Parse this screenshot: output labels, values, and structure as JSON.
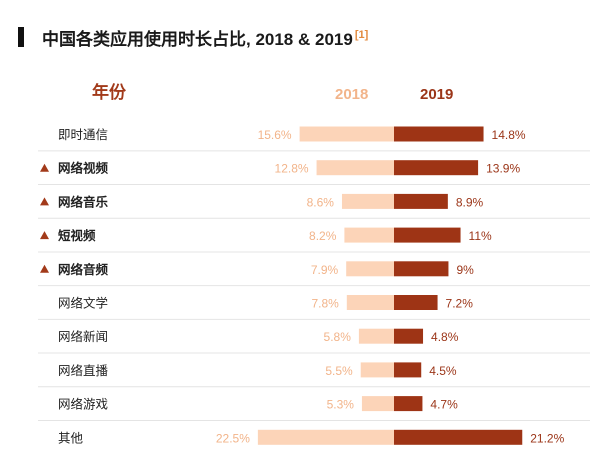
{
  "title": "中国各类应用使用时长占比, 2018 & 2019",
  "footnote": "[1]",
  "column_header": "年份",
  "colors": {
    "accent_2018": "#fcd4b8",
    "accent_2019": "#9e3415",
    "label_2018": "#f2b48a",
    "label_2019": "#9b3518",
    "triangle": "#a23a1a"
  },
  "chart_data": {
    "type": "bar",
    "orientation": "horizontal-diverging",
    "title": "中国各类应用使用时长占比, 2018 & 2019",
    "categories": [
      "即时通信",
      "网络视频",
      "网络音乐",
      "短视频",
      "网络音频",
      "网络文学",
      "网络新闻",
      "网络直播",
      "网络游戏",
      "其他"
    ],
    "highlighted": [
      false,
      true,
      true,
      true,
      true,
      false,
      false,
      false,
      false,
      false
    ],
    "series": [
      {
        "name": "2018",
        "values": [
          15.6,
          12.8,
          8.6,
          8.2,
          7.9,
          7.8,
          5.8,
          5.5,
          5.3,
          22.5
        ],
        "labels": [
          "15.6%",
          "12.8%",
          "8.6%",
          "8.2%",
          "7.9%",
          "7.8%",
          "5.8%",
          "5.5%",
          "5.3%",
          "22.5%"
        ]
      },
      {
        "name": "2019",
        "values": [
          14.8,
          13.9,
          8.9,
          11,
          9,
          7.2,
          4.8,
          4.5,
          4.7,
          21.2
        ],
        "labels": [
          "14.8%",
          "13.9%",
          "8.9%",
          "11%",
          "9%",
          "7.2%",
          "4.8%",
          "4.5%",
          "4.7%",
          "21.2%"
        ]
      }
    ],
    "unit": "%",
    "gridlines": "horizontal row separators"
  }
}
